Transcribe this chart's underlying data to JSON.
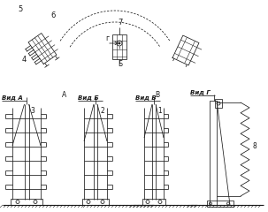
{
  "background": "#ffffff",
  "line_color": "#1a1a1a",
  "labels": {
    "vid_a": "Вид А",
    "vid_b": "Вид Б",
    "vid_v": "Вид В",
    "vid_g": "Вид Г",
    "n1": "1",
    "n2": "2",
    "n3": "3",
    "n4": "4",
    "n5": "5",
    "n6": "6",
    "n7": "7",
    "n8": "8",
    "g_label": "г",
    "a_label": "А",
    "b_label": "Б",
    "v_label": "В"
  },
  "fig_width": 3.03,
  "fig_height": 2.4,
  "dpi": 100
}
